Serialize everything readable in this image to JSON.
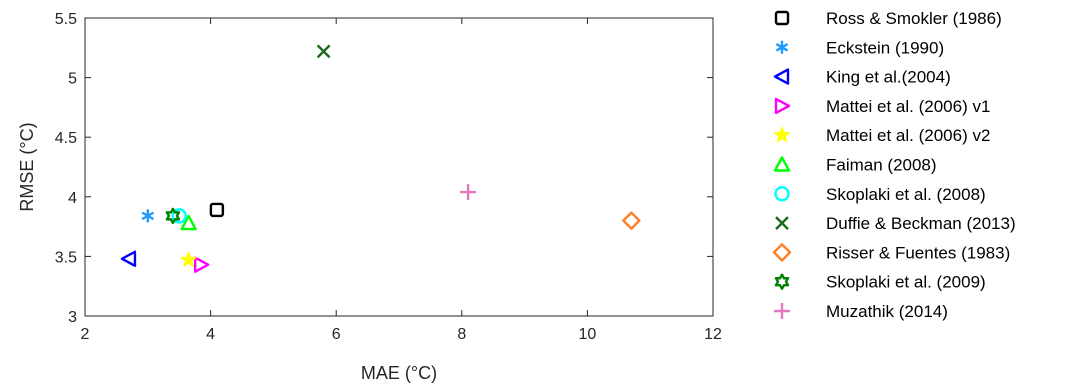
{
  "chart_data": {
    "type": "scatter",
    "title": "",
    "xlabel": "MAE (°C)",
    "ylabel": "RMSE (°C)",
    "xlim": [
      2,
      12
    ],
    "ylim": [
      3,
      5.5
    ],
    "xticks": [
      "2",
      "4",
      "6",
      "8",
      "10",
      "12"
    ],
    "yticks": [
      "3",
      "3.5",
      "4",
      "4.5",
      "5",
      "5.5"
    ],
    "grid": false,
    "legend_position": "outside-right",
    "series": [
      {
        "name": "Ross & Smokler (1986)",
        "marker": "square",
        "color": "#000000",
        "x": 4.1,
        "y": 3.89
      },
      {
        "name": "Eckstein (1990)",
        "marker": "asterisk",
        "color": "#1e9bff",
        "x": 3.0,
        "y": 3.84
      },
      {
        "name": "King et al.(2004)",
        "marker": "triangle-left",
        "color": "#0000ff",
        "x": 2.7,
        "y": 3.48
      },
      {
        "name": "Mattei et al. (2006) v1",
        "marker": "triangle-right",
        "color": "#ff00ff",
        "x": 3.85,
        "y": 3.43
      },
      {
        "name": "Mattei et al. (2006) v2",
        "marker": "star",
        "color": "#ffff00",
        "x": 3.65,
        "y": 3.47
      },
      {
        "name": "Faiman (2008)",
        "marker": "triangle-up",
        "color": "#00ff00",
        "x": 3.65,
        "y": 3.78
      },
      {
        "name": "Skoplaki et al. (2008)",
        "marker": "circle",
        "color": "#00ffff",
        "x": 3.5,
        "y": 3.84
      },
      {
        "name": "Duffie & Beckman (2013)",
        "marker": "x",
        "color": "#1a6b1a",
        "x": 5.8,
        "y": 5.22
      },
      {
        "name": "Risser & Fuentes (1983)",
        "marker": "diamond",
        "color": "#ff7f27",
        "x": 10.7,
        "y": 3.8
      },
      {
        "name": "Skoplaki et al. (2009)",
        "marker": "hexagram",
        "color": "#008000",
        "x": 3.4,
        "y": 3.84
      },
      {
        "name": "Muzathik (2014)",
        "marker": "plus",
        "color": "#e377c2",
        "x": 8.1,
        "y": 4.04
      }
    ]
  }
}
